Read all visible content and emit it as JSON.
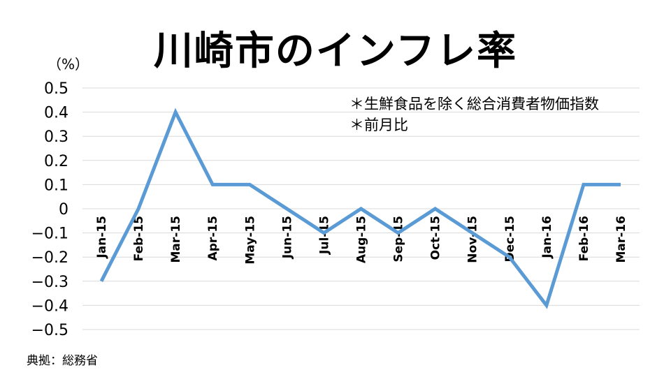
{
  "chart_data": {
    "type": "line",
    "title": "川崎市のインフレ率",
    "unit": "（%）",
    "categories": [
      "Jan-15",
      "Feb-15",
      "Mar-15",
      "Apr-15",
      "May-15",
      "Jun-15",
      "Jul-15",
      "Aug-15",
      "Sep-15",
      "Oct-15",
      "Nov-15",
      "Dec-15",
      "Jan-16",
      "Feb-16",
      "Mar-16"
    ],
    "series": [
      {
        "values": [
          -0.3,
          0,
          0.4,
          0.1,
          0.1,
          0,
          -0.1,
          0,
          -0.1,
          0,
          -0.1,
          -0.2,
          -0.4,
          0.1,
          0.1
        ]
      }
    ],
    "ylim": [
      -0.5,
      0.5
    ],
    "yticks": [
      0.5,
      0.4,
      0.3,
      0.2,
      0.1,
      0,
      -0.1,
      -0.2,
      -0.3,
      -0.4,
      -0.5
    ],
    "ytick_labels": [
      "0.5",
      "0.4",
      "0.3",
      "0.2",
      "0.1",
      "0",
      "−0.1",
      "−0.2",
      "−0.3",
      "−0.4",
      "−0.5"
    ],
    "annotations": [
      "＊生鮮食品を除く総合消費者物価指数",
      "＊前月比"
    ],
    "grid": true,
    "line_color": "#5b9bd5",
    "grid_color": "#d9d9d9"
  },
  "source": "典拠：総務省"
}
